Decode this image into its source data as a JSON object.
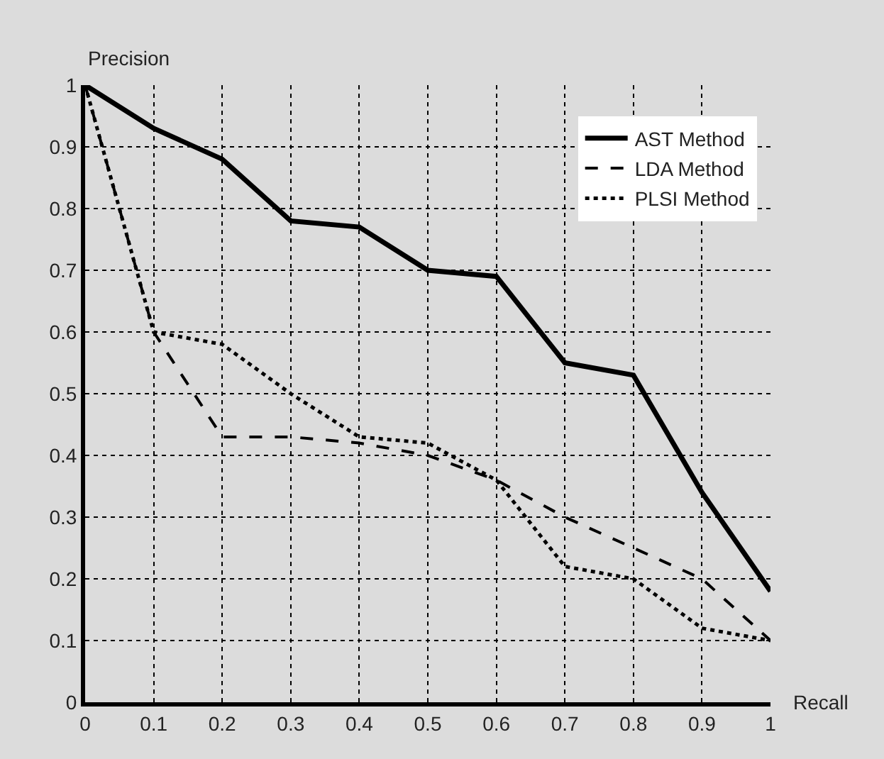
{
  "chart_data": {
    "type": "line",
    "xlabel": "Recall",
    "ylabel": "Precision",
    "x": [
      0,
      0.1,
      0.2,
      0.3,
      0.4,
      0.5,
      0.6,
      0.7,
      0.8,
      0.9,
      1
    ],
    "series": [
      {
        "name": "AST Method",
        "color": "#000000",
        "line_style": "solid",
        "values": [
          1,
          0.93,
          0.88,
          0.78,
          0.77,
          0.7,
          0.69,
          0.55,
          0.53,
          0.34,
          0.18
        ]
      },
      {
        "name": "LDA Method",
        "color": "#000000",
        "line_style": "dashed",
        "values": [
          1,
          0.6,
          0.43,
          0.43,
          0.42,
          0.4,
          0.36,
          0.3,
          0.25,
          0.2,
          0.1
        ]
      },
      {
        "name": "PLSI Method",
        "color": "#000000",
        "line_style": "dotted",
        "values": [
          1,
          0.6,
          0.58,
          0.5,
          0.43,
          0.42,
          0.36,
          0.22,
          0.2,
          0.12,
          0.1
        ]
      }
    ],
    "xlim": [
      0,
      1
    ],
    "xticks": [
      0,
      0.1,
      0.2,
      0.3,
      0.4,
      0.5,
      0.6,
      0.7,
      0.8,
      0.9,
      1
    ],
    "ylim": [
      0,
      1
    ],
    "yticks": [
      0,
      0.1,
      0.2,
      0.3,
      0.4,
      0.5,
      0.6,
      0.7,
      0.8,
      0.9,
      1
    ],
    "grid": true,
    "legend": "top right",
    "marker": "none"
  }
}
